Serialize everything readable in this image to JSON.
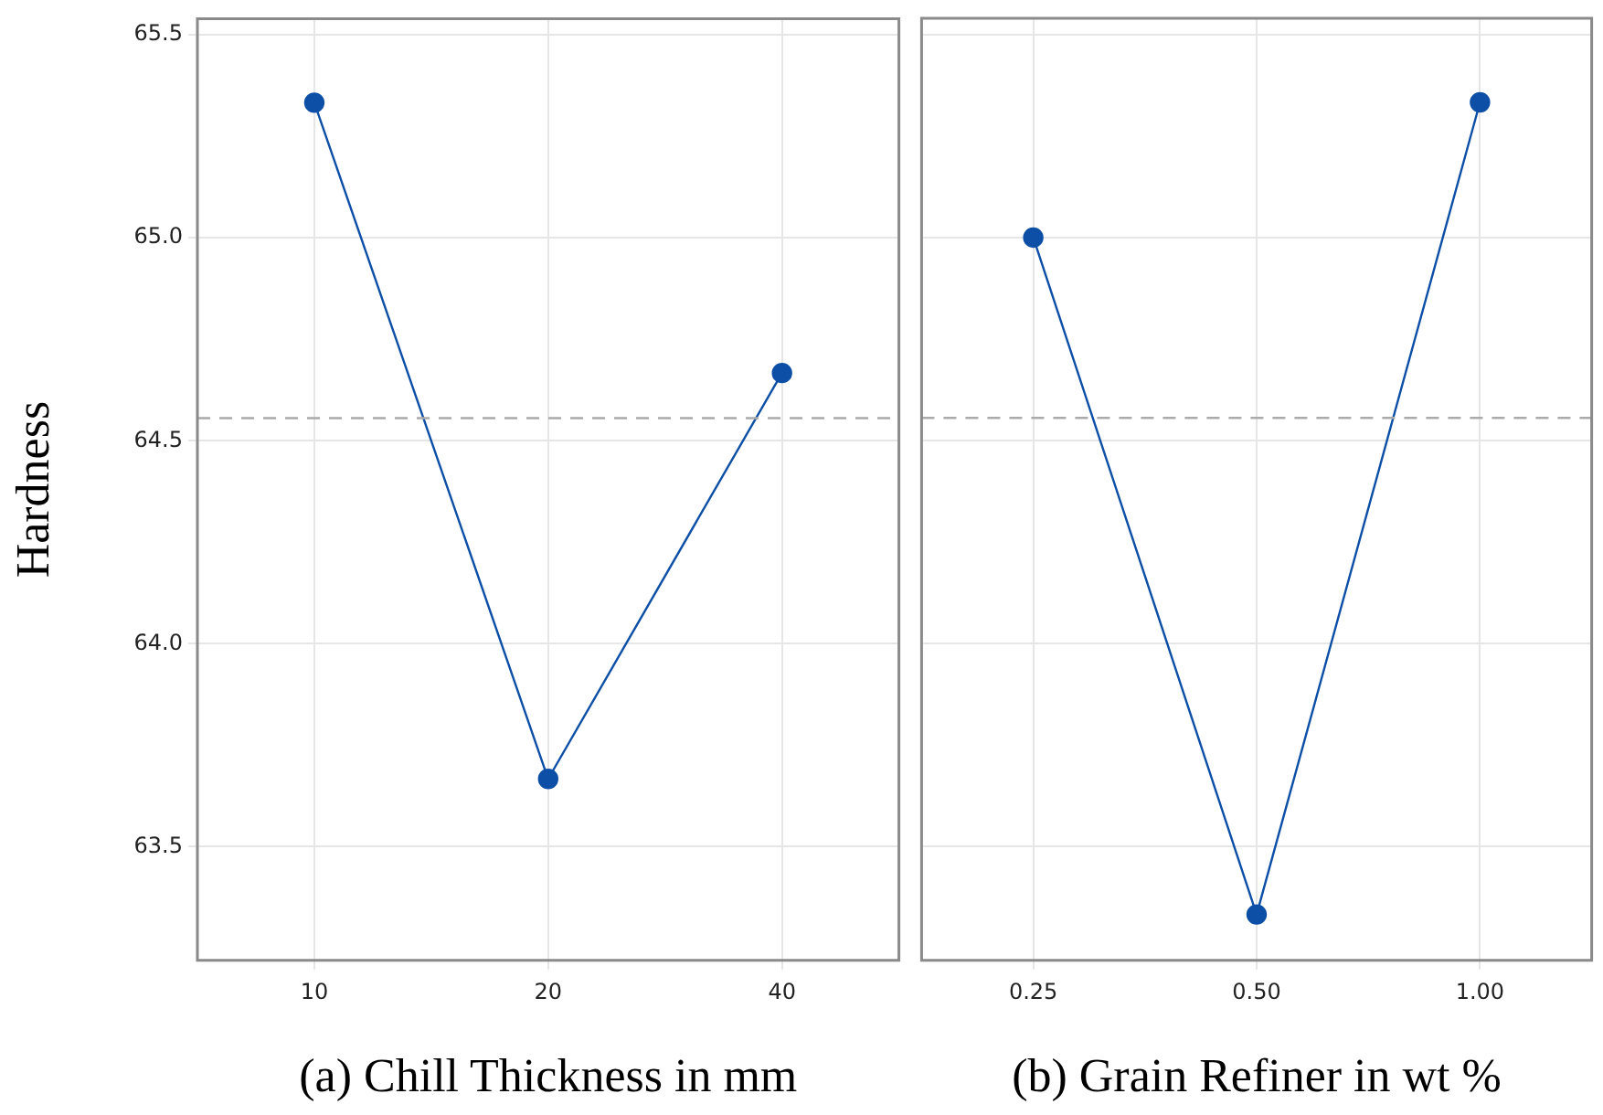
{
  "chart_data": [
    {
      "type": "line",
      "ylabel": "Hardness",
      "xlabel": "(a) Chill Thickness in mm",
      "categories": [
        "10",
        "20",
        "40"
      ],
      "series": [
        {
          "color": "#0d4fa6",
          "values": [
            65.333,
            63.667,
            64.667
          ]
        }
      ],
      "ylim": [
        63.22,
        65.54
      ],
      "yticks": [
        63.5,
        {
          "value": 64,
          "label": "64.0"
        },
        64.5,
        {
          "value": 65,
          "label": "65.0"
        },
        65.5
      ],
      "grid": true,
      "marker": "circle",
      "line_style": "solid",
      "ref_lines": [
        {
          "axis": "y",
          "value": 64.556,
          "color": "#aaaaaa",
          "line_style": "dashed"
        }
      ]
    },
    {
      "type": "line",
      "xlabel": "(b) Grain Refiner in wt %",
      "categories": [
        "0.25",
        "0.50",
        "1.00"
      ],
      "series": [
        {
          "color": "#0d4fa6",
          "values": [
            65.0,
            63.333,
            65.333
          ]
        }
      ],
      "ylim": [
        63.22,
        65.54
      ],
      "yticks": [
        63.5,
        64,
        64.5,
        65,
        65.5
      ],
      "grid": true,
      "marker": "circle",
      "line_style": "solid",
      "tick_labels": "x",
      "ref_lines": [
        {
          "axis": "y",
          "value": 64.556,
          "color": "#aaaaaa",
          "line_style": "dashed"
        }
      ]
    }
  ]
}
